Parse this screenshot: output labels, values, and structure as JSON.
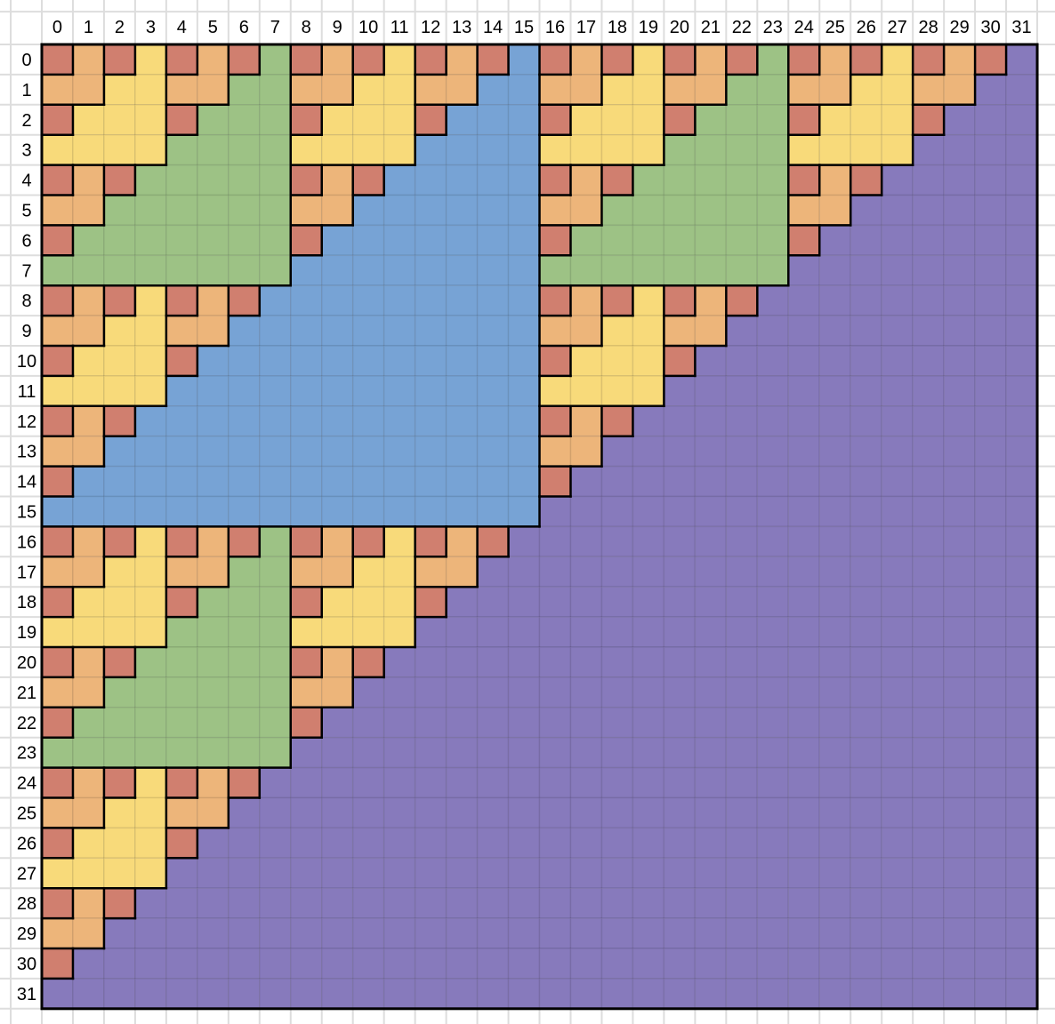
{
  "column_labels": [
    "0",
    "1",
    "2",
    "3",
    "4",
    "5",
    "6",
    "7",
    "8",
    "9",
    "10",
    "11",
    "12",
    "13",
    "14",
    "15",
    "16",
    "17",
    "18",
    "19",
    "20",
    "21",
    "22",
    "23",
    "24",
    "25",
    "26",
    "27",
    "28",
    "29",
    "30",
    "31"
  ],
  "row_labels": [
    "0",
    "1",
    "2",
    "3",
    "4",
    "5",
    "6",
    "7",
    "8",
    "9",
    "10",
    "11",
    "12",
    "13",
    "14",
    "15",
    "16",
    "17",
    "18",
    "19",
    "20",
    "21",
    "22",
    "23",
    "24",
    "25",
    "26",
    "27",
    "28",
    "29",
    "30",
    "31"
  ],
  "level_colors": [
    "#d07f6f",
    "#edb57a",
    "#f8da7a",
    "#9dc285",
    "#77a3d5",
    "#877abc"
  ],
  "grid_line_color": "#dddddd",
  "border_color": "#000000"
}
